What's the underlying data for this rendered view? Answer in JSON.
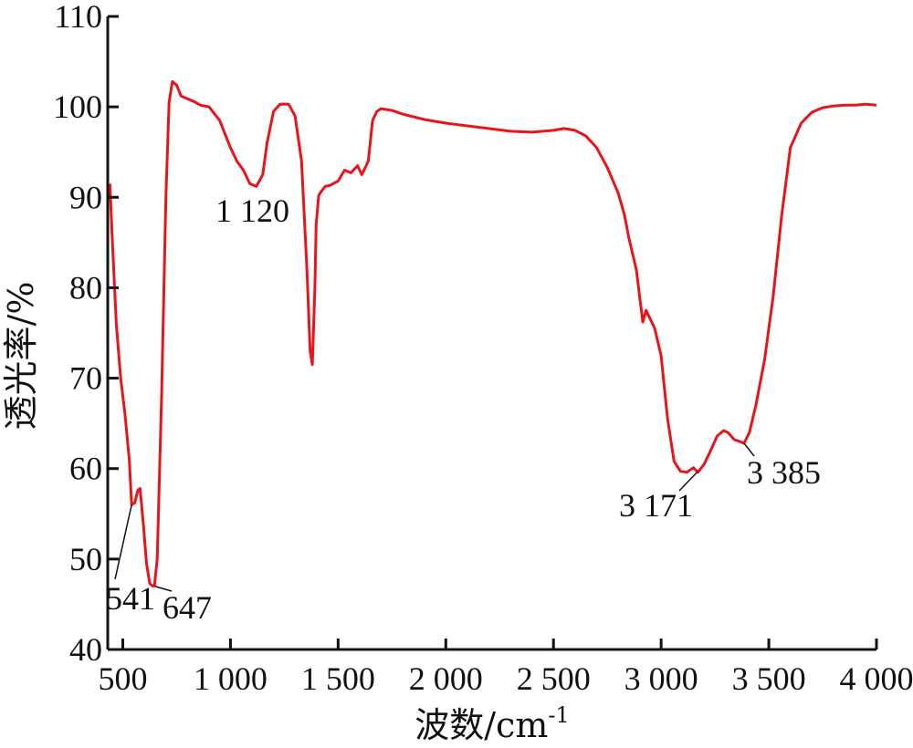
{
  "chart_data": {
    "type": "line",
    "title": "",
    "xlabel": "波数/cm",
    "xlabel_sup": "-1",
    "ylabel": "透光率/%",
    "xlim": [
      430,
      4000
    ],
    "ylim": [
      40,
      110
    ],
    "x_ticks": [
      500,
      1000,
      1500,
      2000,
      2500,
      3000,
      3500,
      4000
    ],
    "x_tick_labels": [
      "500",
      "1 000",
      "1 500",
      "2 000",
      "2 500",
      "3 000",
      "3 500",
      "4 000"
    ],
    "y_ticks": [
      40,
      50,
      60,
      70,
      80,
      90,
      100,
      110
    ],
    "y_tick_labels": [
      "40",
      "50",
      "60",
      "70",
      "80",
      "90",
      "100",
      "110"
    ],
    "grid": false,
    "line_color": "#e8141c",
    "series": [
      {
        "x": [
          440,
          450,
          470,
          490,
          510,
          530,
          541,
          555,
          570,
          580,
          595,
          610,
          625,
          640,
          647,
          660,
          680,
          700,
          715,
          730,
          750,
          770,
          790,
          810,
          830,
          860,
          900,
          950,
          1000,
          1030,
          1060,
          1090,
          1120,
          1150,
          1170,
          1200,
          1230,
          1270,
          1300,
          1330,
          1355,
          1370,
          1380,
          1392,
          1398,
          1410,
          1420,
          1440,
          1460,
          1500,
          1530,
          1560,
          1590,
          1610,
          1640,
          1660,
          1680,
          1700,
          1750,
          1800,
          1900,
          2000,
          2100,
          2200,
          2300,
          2400,
          2500,
          2550,
          2600,
          2650,
          2700,
          2750,
          2800,
          2830,
          2850,
          2870,
          2885,
          2900,
          2915,
          2930,
          2950,
          2970,
          3000,
          3030,
          3060,
          3090,
          3120,
          3150,
          3171,
          3200,
          3230,
          3260,
          3290,
          3310,
          3340,
          3365,
          3385,
          3410,
          3440,
          3480,
          3520,
          3560,
          3600,
          3650,
          3700,
          3750,
          3800,
          3850,
          3900,
          3950,
          4000
        ],
        "y": [
          91.5,
          86,
          76,
          70,
          66,
          61,
          56,
          56.2,
          57.6,
          57.8,
          54,
          49.5,
          47.3,
          47.0,
          47.1,
          50,
          68,
          90,
          100.5,
          102.8,
          102.4,
          101.2,
          101,
          100.8,
          100.6,
          100.2,
          100,
          98.5,
          95.5,
          94,
          93,
          91.5,
          91.2,
          92.5,
          96,
          99.5,
          100.3,
          100.3,
          99,
          94,
          82,
          73,
          71.5,
          80,
          87,
          90.2,
          90.6,
          91.2,
          91.3,
          91.8,
          93,
          92.7,
          93.5,
          92.5,
          94,
          98.5,
          99.5,
          99.8,
          99.6,
          99.2,
          98.6,
          98.2,
          97.9,
          97.6,
          97.3,
          97.2,
          97.4,
          97.6,
          97.4,
          96.8,
          95.5,
          93.3,
          90.5,
          88,
          85.5,
          83.5,
          82,
          79,
          76.2,
          77.5,
          76.5,
          75.5,
          72.5,
          65.5,
          60.8,
          59.7,
          59.6,
          60.1,
          59.6,
          60.5,
          62,
          63.6,
          64.2,
          64,
          63.2,
          63,
          62.8,
          64,
          67,
          72,
          79,
          88,
          95.5,
          98.2,
          99.4,
          99.9,
          100.1,
          100.2,
          100.2,
          100.3,
          100.2
        ]
      }
    ],
    "annotations": [
      {
        "label": "541",
        "x": 541,
        "y": 56
      },
      {
        "label": "647",
        "x": 647,
        "y": 47
      },
      {
        "label": "1 120",
        "x": 1120,
        "y": 91
      },
      {
        "label": "3 171",
        "x": 3171,
        "y": 59.7
      },
      {
        "label": "3 385",
        "x": 3385,
        "y": 62.8
      }
    ]
  }
}
